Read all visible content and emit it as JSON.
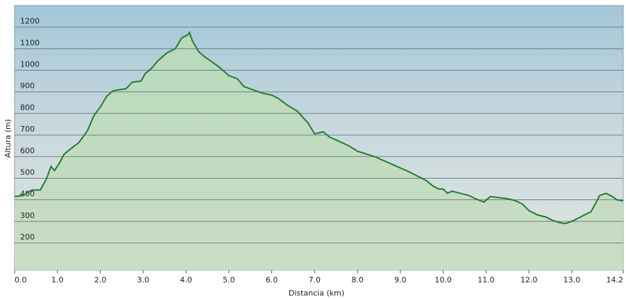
{
  "chart_data": {
    "type": "area",
    "x_label": "Distancia  (km)",
    "y_label": "Altura (m)",
    "color": "#227a2e",
    "x": [
      0,
      0.2,
      0.4,
      0.6,
      0.75,
      0.85,
      0.93,
      1.05,
      1.15,
      1.3,
      1.5,
      1.7,
      1.85,
      2.0,
      2.15,
      2.3,
      2.45,
      2.6,
      2.75,
      2.95,
      3.05,
      3.2,
      3.35,
      3.55,
      3.75,
      3.9,
      4.05,
      4.08,
      4.15,
      4.3,
      4.45,
      4.6,
      4.8,
      5.0,
      5.2,
      5.35,
      5.55,
      5.8,
      6.0,
      6.15,
      6.35,
      6.6,
      6.85,
      7.0,
      7.2,
      7.35,
      7.6,
      7.8,
      8.0,
      8.4,
      8.8,
      9.2,
      9.4,
      9.6,
      9.75,
      9.9,
      10.0,
      10.1,
      10.2,
      10.4,
      10.6,
      10.75,
      10.95,
      11.1,
      11.3,
      11.5,
      11.7,
      11.85,
      12.0,
      12.2,
      12.4,
      12.55,
      12.7,
      12.85,
      13.0,
      13.2,
      13.45,
      13.6,
      13.65,
      13.8,
      13.95,
      14.05,
      14.2
    ],
    "values": [
      415,
      420,
      445,
      445,
      500,
      555,
      535,
      570,
      610,
      635,
      665,
      720,
      790,
      830,
      880,
      905,
      910,
      915,
      945,
      950,
      985,
      1010,
      1045,
      1080,
      1100,
      1150,
      1165,
      1175,
      1135,
      1085,
      1060,
      1040,
      1010,
      975,
      960,
      925,
      910,
      893,
      885,
      870,
      840,
      810,
      755,
      705,
      715,
      690,
      668,
      650,
      625,
      600,
      565,
      530,
      510,
      490,
      465,
      450,
      450,
      430,
      440,
      430,
      420,
      405,
      390,
      415,
      410,
      405,
      395,
      380,
      350,
      330,
      320,
      305,
      295,
      290,
      300,
      320,
      345,
      400,
      420,
      430,
      415,
      400,
      395
    ],
    "xlim": [
      0,
      14.2
    ],
    "ylim": [
      75,
      1300
    ],
    "xticks": [
      {
        "value": 0,
        "label": "0.0"
      },
      {
        "value": 1,
        "label": "1.0"
      },
      {
        "value": 2,
        "label": "2.0"
      },
      {
        "value": 3,
        "label": "3.0"
      },
      {
        "value": 4,
        "label": "4.0"
      },
      {
        "value": 5,
        "label": "5.0"
      },
      {
        "value": 6,
        "label": "6.0"
      },
      {
        "value": 7,
        "label": "7.0"
      },
      {
        "value": 8,
        "label": "8.0"
      },
      {
        "value": 9,
        "label": "9.0"
      },
      {
        "value": 10,
        "label": "10.0"
      },
      {
        "value": 11,
        "label": "11.0"
      },
      {
        "value": 12,
        "label": "12.0"
      },
      {
        "value": 13,
        "label": "13.0"
      },
      {
        "value": 14.2,
        "label": "14.2"
      }
    ],
    "yticks": [
      200,
      300,
      400,
      500,
      600,
      700,
      800,
      900,
      1000,
      1100,
      1200
    ],
    "grid": true
  }
}
